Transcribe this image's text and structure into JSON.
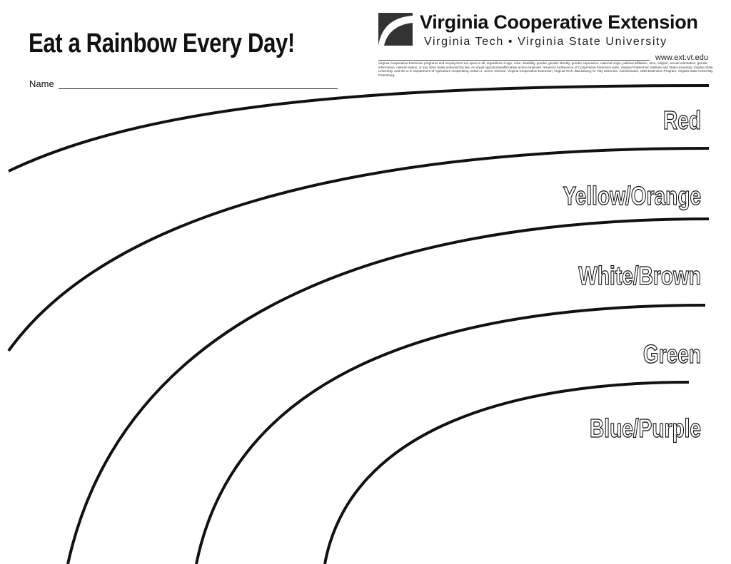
{
  "header": {
    "title": "Eat a Rainbow Every Day!",
    "name_label": "Name"
  },
  "organization": {
    "name": "Virginia Cooperative Extension",
    "subtitle": "Virginia Tech  •  Virginia State University",
    "url": "www.ext.vt.edu",
    "disclaimer": "Virginia Cooperative Extension programs and employment are open to all, regardless of age, color, disability, gender, gender identity, gender expression, national origin, political affiliation, race, religion, sexual orientation, genetic information, veteran status, or any other basis protected by law. An equal opportunity/affirmative action employer. Issued in furtherance of Cooperative Extension work, Virginia Polytechnic Institute and State University, Virginia State University, and the U.S. Department of Agriculture cooperating. Edwin J. Jones, Director, Virginia Cooperative Extension, Virginia Tech, Blacksburg; M. Ray McKinnie, Administrator, 1890 Extension Program, Virginia State University, Petersburg."
  },
  "bands": [
    {
      "label": "Red"
    },
    {
      "label": "Yellow/Orange"
    },
    {
      "label": "White/Brown"
    },
    {
      "label": "Green"
    },
    {
      "label": "Blue/Purple"
    }
  ]
}
